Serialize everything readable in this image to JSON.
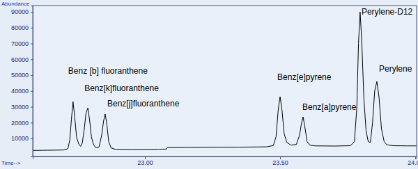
{
  "chart_data": {
    "type": "line",
    "x_label": "Time-->",
    "y_label": "Abundance",
    "color": "#000000",
    "grid": false,
    "xlim": [
      22.585,
      24.005
    ],
    "ylim": [
      -1400,
      94000
    ],
    "xticks": [
      {
        "value": 23,
        "label": "23.00"
      },
      {
        "value": 23.5,
        "label": "23.50"
      },
      {
        "value": 24,
        "label": "24.00"
      }
    ],
    "yticks": [
      10000,
      20000,
      30000,
      40000,
      50000,
      60000,
      70000,
      80000,
      90000
    ],
    "x": [
      22.585,
      22.62,
      22.66,
      22.7,
      22.715,
      22.722,
      22.728,
      22.734,
      22.74,
      22.747,
      22.755,
      22.762,
      22.768,
      22.775,
      22.782,
      22.789,
      22.795,
      22.802,
      22.81,
      22.818,
      22.83,
      22.84,
      22.847,
      22.853,
      22.859,
      22.866,
      22.875,
      22.89,
      22.95,
      23.0,
      23.05,
      23.08,
      23.082,
      23.15,
      23.25,
      23.35,
      23.45,
      23.475,
      23.485,
      23.493,
      23.5,
      23.507,
      23.515,
      23.525,
      23.54,
      23.56,
      23.572,
      23.579,
      23.585,
      23.591,
      23.6,
      23.61,
      23.63,
      23.7,
      23.76,
      23.775,
      23.784,
      23.79,
      23.796,
      23.802,
      23.81,
      23.818,
      23.826,
      23.834,
      23.842,
      23.85,
      23.858,
      23.866,
      23.875,
      23.885,
      23.895,
      23.92,
      23.97,
      24.005
    ],
    "values": [
      2400,
      2500,
      2600,
      2700,
      3500,
      9000,
      22000,
      33300,
      24000,
      11000,
      6500,
      5000,
      7000,
      15000,
      26000,
      29300,
      22000,
      11000,
      6000,
      4200,
      4500,
      12000,
      21000,
      25400,
      19000,
      8000,
      4000,
      3200,
      3100,
      3100,
      3200,
      3300,
      4200,
      4300,
      4400,
      4500,
      4700,
      5500,
      11000,
      28000,
      36400,
      28000,
      13000,
      7500,
      5800,
      6200,
      12000,
      19500,
      23600,
      18000,
      8000,
      5800,
      5300,
      5200,
      5400,
      8000,
      30000,
      70000,
      90000,
      72000,
      35000,
      15000,
      8000,
      7500,
      20000,
      40000,
      46000,
      36000,
      16000,
      8000,
      6000,
      5400,
      5300,
      5300
    ],
    "annotations": [
      {
        "text": "Benz [b] fluoranthene",
        "x": 22.734,
        "y": 33300
      },
      {
        "text": "Benz[k]fluoranthene",
        "x": 22.789,
        "y": 29300
      },
      {
        "text": "Benz[j]fluoranthene",
        "x": 22.853,
        "y": 25400
      },
      {
        "text": "Benz[e]pyrene",
        "x": 23.5,
        "y": 36400
      },
      {
        "text": "Benz[a]pyrene",
        "x": 23.585,
        "y": 23600
      },
      {
        "text": "Perylene-D12",
        "x": 23.796,
        "y": 90000
      },
      {
        "text": "Perylene",
        "x": 23.858,
        "y": 46000
      }
    ]
  }
}
